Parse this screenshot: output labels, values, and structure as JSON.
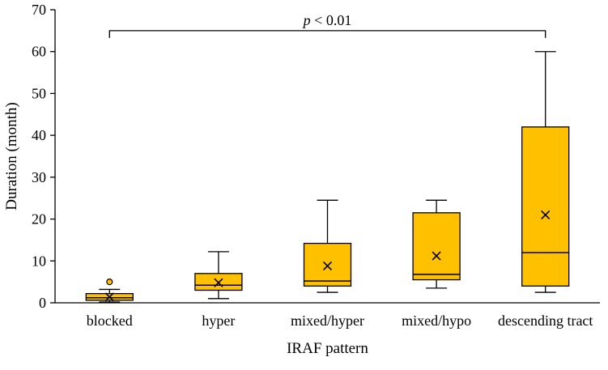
{
  "chart_data": {
    "type": "box",
    "title": "",
    "xlabel": "IRAF pattern",
    "ylabel": "Duration (month)",
    "ylim": [
      0,
      70
    ],
    "ytick_step": 10,
    "yticks": [
      0,
      10,
      20,
      30,
      40,
      50,
      60,
      70
    ],
    "categories": [
      "blocked",
      "hyper",
      "mixed/hyper",
      "mixed/hypo",
      "descending tract"
    ],
    "boxes": [
      {
        "low": 0.2,
        "q1": 0.6,
        "median": 1.2,
        "q3": 2.2,
        "high": 3.2,
        "mean": 1.4,
        "outliers": [
          5
        ]
      },
      {
        "low": 1.0,
        "q1": 3.0,
        "median": 4.2,
        "q3": 7.0,
        "high": 12.2,
        "mean": 4.8,
        "outliers": []
      },
      {
        "low": 2.5,
        "q1": 4.0,
        "median": 5.2,
        "q3": 14.2,
        "high": 24.5,
        "mean": 8.8,
        "outliers": []
      },
      {
        "low": 3.5,
        "q1": 5.5,
        "median": 6.8,
        "q3": 21.5,
        "high": 24.5,
        "mean": 11.2,
        "outliers": []
      },
      {
        "low": 2.5,
        "q1": 4.0,
        "median": 12.0,
        "q3": 42.0,
        "high": 60.0,
        "mean": 21.0,
        "outliers": []
      }
    ],
    "annotation": {
      "label_italic": "p",
      "label_rest": " < 0.01",
      "from_category": 0,
      "to_category": 4,
      "y": 65
    },
    "style": {
      "box_fill": "#FFC000",
      "box_stroke": "#000000",
      "axis_color": "#000000",
      "legend": "none",
      "grid": "off"
    }
  }
}
